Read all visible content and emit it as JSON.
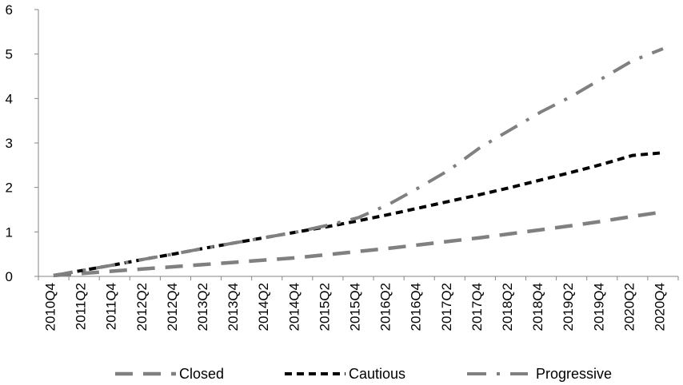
{
  "chart_data": {
    "type": "line",
    "title": "",
    "xlabel": "",
    "ylabel": "",
    "ylim": [
      0,
      6
    ],
    "yticks": [
      0,
      1,
      2,
      3,
      4,
      5,
      6
    ],
    "grid": false,
    "legend_position": "bottom",
    "categories": [
      "2010Q4",
      "2011Q2",
      "2011Q4",
      "2012Q2",
      "2012Q4",
      "2013Q2",
      "2013Q4",
      "2014Q2",
      "2014Q4",
      "2015Q2",
      "2015Q4",
      "2016Q2",
      "2016Q4",
      "2017Q2",
      "2017Q4",
      "2018Q2",
      "2018Q4",
      "2019Q2",
      "2019Q4",
      "2020Q2",
      "2020Q4"
    ],
    "series": [
      {
        "name": "Closed",
        "color": "#808080",
        "style": "long-dash",
        "values": [
          0.02,
          0.07,
          0.12,
          0.17,
          0.22,
          0.27,
          0.32,
          0.37,
          0.42,
          0.49,
          0.56,
          0.63,
          0.71,
          0.79,
          0.87,
          0.96,
          1.05,
          1.14,
          1.24,
          1.35,
          1.45
        ]
      },
      {
        "name": "Cautious",
        "color": "#000000",
        "style": "dash",
        "values": [
          0.02,
          0.14,
          0.26,
          0.39,
          0.51,
          0.64,
          0.76,
          0.88,
          1.0,
          1.12,
          1.25,
          1.39,
          1.54,
          1.69,
          1.84,
          2.0,
          2.17,
          2.34,
          2.52,
          2.72,
          2.78
        ]
      },
      {
        "name": "Progressive",
        "color": "#808080",
        "style": "dash-dot",
        "values": [
          0.02,
          0.14,
          0.26,
          0.39,
          0.51,
          0.64,
          0.76,
          0.88,
          1.0,
          1.15,
          1.32,
          1.62,
          2.0,
          2.4,
          2.9,
          3.3,
          3.7,
          4.05,
          4.45,
          4.85,
          5.12
        ]
      }
    ]
  }
}
